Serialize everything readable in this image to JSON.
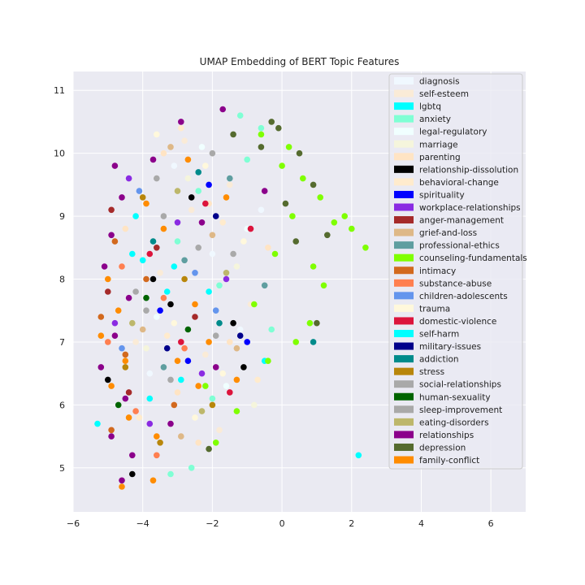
{
  "chart_data": {
    "type": "scatter",
    "title": "UMAP Embedding of BERT Topic Features",
    "xlabel": "",
    "ylabel": "",
    "xlim": [
      -6,
      7
    ],
    "ylim": [
      4.3,
      11.3
    ],
    "xticks": [
      "−6",
      "−4",
      "−2",
      "0",
      "2",
      "4",
      "6"
    ],
    "yticks": [
      "5",
      "6",
      "7",
      "8",
      "9",
      "10",
      "11"
    ],
    "xtick_values": [
      -6,
      -4,
      -2,
      0,
      2,
      4,
      6
    ],
    "ytick_values": [
      5,
      6,
      7,
      8,
      9,
      10,
      11
    ],
    "grid": true,
    "legend_position": "top-right",
    "series": [
      {
        "name": "diagnosis",
        "color": "#f0f8ff",
        "points": [
          [
            -3.1,
            9.8
          ],
          [
            -2.0,
            8.4
          ],
          [
            -1.2,
            7.2
          ],
          [
            -3.8,
            6.5
          ],
          [
            -0.6,
            9.1
          ]
        ]
      },
      {
        "name": "self-esteem",
        "color": "#faebd7",
        "points": [
          [
            -2.8,
            10.2
          ],
          [
            -1.5,
            9.5
          ],
          [
            -3.5,
            8.1
          ],
          [
            -2.2,
            6.8
          ],
          [
            -0.9,
            7.6
          ],
          [
            -4.2,
            7.0
          ],
          [
            -1.8,
            5.6
          ],
          [
            -2.6,
            9.1
          ]
        ]
      },
      {
        "name": "lgbtq",
        "color": "#00ffff",
        "points": [
          [
            -4.0,
            8.3
          ],
          [
            -4.3,
            8.4
          ],
          [
            -2.9,
            6.4
          ],
          [
            -0.5,
            6.7
          ],
          [
            2.2,
            5.2
          ],
          [
            -3.3,
            7.8
          ]
        ]
      },
      {
        "name": "anxiety",
        "color": "#7fffd4",
        "points": [
          [
            -1.2,
            10.6
          ],
          [
            -0.6,
            10.4
          ],
          [
            -2.4,
            9.4
          ],
          [
            -3.0,
            8.6
          ],
          [
            -1.8,
            7.9
          ],
          [
            -0.3,
            7.2
          ],
          [
            -2.6,
            5.0
          ],
          [
            -3.2,
            4.9
          ],
          [
            -1.0,
            9.9
          ],
          [
            -2.0,
            6.1
          ]
        ]
      },
      {
        "name": "legal-regulatory",
        "color": "#f0ffff",
        "points": [
          [
            -2.3,
            10.1
          ],
          [
            -1.0,
            8.8
          ],
          [
            -3.6,
            7.4
          ],
          [
            -1.6,
            6.3
          ]
        ]
      },
      {
        "name": "marriage",
        "color": "#f5f5dc",
        "points": [
          [
            -2.7,
            9.6
          ],
          [
            -1.3,
            8.2
          ],
          [
            -3.9,
            6.9
          ],
          [
            -0.8,
            6.0
          ]
        ]
      },
      {
        "name": "parenting",
        "color": "#ffe4c4",
        "points": [
          [
            -3.4,
            10.0
          ],
          [
            -2.1,
            9.2
          ],
          [
            -4.5,
            8.8
          ],
          [
            -1.5,
            7.0
          ],
          [
            -3.0,
            6.2
          ],
          [
            -2.4,
            5.4
          ],
          [
            -0.4,
            8.5
          ]
        ]
      },
      {
        "name": "relationship-dissolution",
        "color": "#000000",
        "points": [
          [
            -2.6,
            9.3
          ],
          [
            -3.7,
            8.0
          ],
          [
            -1.4,
            7.3
          ],
          [
            -5.0,
            6.4
          ],
          [
            -4.3,
            4.9
          ],
          [
            -1.1,
            6.6
          ],
          [
            -3.2,
            7.6
          ]
        ]
      },
      {
        "name": "behavioral-change",
        "color": "#ffebcd",
        "points": [
          [
            -2.9,
            10.4
          ],
          [
            -1.7,
            8.9
          ],
          [
            -3.3,
            7.1
          ],
          [
            -0.7,
            6.4
          ],
          [
            -4.1,
            5.8
          ]
        ]
      },
      {
        "name": "spirituality",
        "color": "#0000ff",
        "points": [
          [
            -2.1,
            9.5
          ],
          [
            -3.5,
            7.5
          ],
          [
            -1.0,
            7.0
          ],
          [
            -2.7,
            6.7
          ]
        ]
      },
      {
        "name": "workplace-relationships",
        "color": "#8a2be2",
        "points": [
          [
            -4.4,
            9.6
          ],
          [
            -3.0,
            8.9
          ],
          [
            -1.6,
            8.0
          ],
          [
            -4.8,
            7.3
          ],
          [
            -2.3,
            6.5
          ],
          [
            -3.8,
            5.7
          ]
        ]
      },
      {
        "name": "anger-management",
        "color": "#a52a2a",
        "points": [
          [
            -4.9,
            9.1
          ],
          [
            -3.6,
            8.5
          ],
          [
            -5.0,
            7.8
          ],
          [
            -2.5,
            7.4
          ],
          [
            -4.4,
            6.2
          ]
        ]
      },
      {
        "name": "grief-and-loss",
        "color": "#deb887",
        "points": [
          [
            -3.2,
            10.1
          ],
          [
            -2.0,
            8.7
          ],
          [
            -4.0,
            7.2
          ],
          [
            -1.3,
            6.9
          ],
          [
            -2.9,
            5.5
          ]
        ]
      },
      {
        "name": "professional-ethics",
        "color": "#5f9ea0",
        "points": [
          [
            -1.5,
            9.6
          ],
          [
            -2.8,
            8.3
          ],
          [
            -0.5,
            7.9
          ],
          [
            -3.4,
            6.6
          ]
        ]
      },
      {
        "name": "counseling-fundamentals",
        "color": "#7fff00",
        "points": [
          [
            0.2,
            10.1
          ],
          [
            0.6,
            9.6
          ],
          [
            1.1,
            9.3
          ],
          [
            1.5,
            8.9
          ],
          [
            2.0,
            8.8
          ],
          [
            2.4,
            8.5
          ],
          [
            0.9,
            8.2
          ],
          [
            1.2,
            7.9
          ],
          [
            0.3,
            9.0
          ],
          [
            -0.2,
            8.4
          ],
          [
            -0.8,
            7.6
          ],
          [
            -0.4,
            6.7
          ],
          [
            -1.3,
            5.9
          ],
          [
            -1.9,
            5.4
          ],
          [
            0.8,
            7.3
          ],
          [
            0.0,
            9.8
          ],
          [
            1.8,
            9.0
          ],
          [
            -0.6,
            10.3
          ],
          [
            -2.2,
            6.3
          ],
          [
            0.4,
            7.0
          ]
        ]
      },
      {
        "name": "intimacy",
        "color": "#d2691e",
        "points": [
          [
            -4.8,
            8.6
          ],
          [
            -3.9,
            8.0
          ],
          [
            -5.2,
            7.4
          ],
          [
            -4.5,
            6.8
          ],
          [
            -3.1,
            6.0
          ],
          [
            -4.9,
            5.6
          ]
        ]
      },
      {
        "name": "substance-abuse",
        "color": "#ff7f50",
        "points": [
          [
            -4.6,
            8.2
          ],
          [
            -3.4,
            7.7
          ],
          [
            -5.0,
            7.0
          ],
          [
            -2.8,
            6.9
          ],
          [
            -4.2,
            5.9
          ],
          [
            -3.6,
            5.2
          ]
        ]
      },
      {
        "name": "children-adolescents",
        "color": "#6495ed",
        "points": [
          [
            -4.1,
            9.4
          ],
          [
            -2.5,
            8.1
          ],
          [
            -4.6,
            6.9
          ],
          [
            -1.9,
            7.5
          ]
        ]
      },
      {
        "name": "trauma",
        "color": "#fff8dc",
        "points": [
          [
            -3.6,
            10.3
          ],
          [
            -2.2,
            9.8
          ],
          [
            -1.1,
            8.6
          ],
          [
            -3.1,
            7.3
          ],
          [
            -1.7,
            6.5
          ],
          [
            -2.5,
            5.8
          ]
        ]
      },
      {
        "name": "domestic-violence",
        "color": "#dc143c",
        "points": [
          [
            -2.2,
            9.2
          ],
          [
            -3.8,
            8.4
          ],
          [
            -0.9,
            8.8
          ],
          [
            -2.9,
            7.0
          ],
          [
            -1.5,
            6.2
          ]
        ]
      },
      {
        "name": "self-harm",
        "color": "#00ffff",
        "points": [
          [
            -4.2,
            9.0
          ],
          [
            -3.1,
            8.2
          ],
          [
            -3.8,
            6.1
          ],
          [
            -5.3,
            5.7
          ],
          [
            -2.1,
            7.8
          ]
        ]
      },
      {
        "name": "military-issues",
        "color": "#00008b",
        "points": [
          [
            -1.9,
            9.0
          ],
          [
            -3.3,
            6.9
          ],
          [
            -1.2,
            7.1
          ]
        ]
      },
      {
        "name": "addiction",
        "color": "#008b8b",
        "points": [
          [
            -2.4,
            9.7
          ],
          [
            -3.7,
            8.6
          ],
          [
            -1.8,
            7.3
          ],
          [
            0.9,
            7.0
          ]
        ]
      },
      {
        "name": "stress",
        "color": "#b8860b",
        "points": [
          [
            -4.0,
            9.3
          ],
          [
            -2.8,
            8.0
          ],
          [
            -4.5,
            6.6
          ],
          [
            -2.0,
            6.0
          ],
          [
            -3.5,
            5.4
          ]
        ]
      },
      {
        "name": "social-relationships",
        "color": "#a9a9a9",
        "points": [
          [
            -3.6,
            9.6
          ],
          [
            -2.4,
            8.5
          ],
          [
            -4.2,
            7.8
          ],
          [
            -1.9,
            7.1
          ],
          [
            -3.2,
            6.4
          ]
        ]
      },
      {
        "name": "human-sexuality",
        "color": "#006400",
        "points": [
          [
            -3.9,
            7.7
          ],
          [
            -4.7,
            6.0
          ],
          [
            -2.7,
            7.2
          ]
        ]
      },
      {
        "name": "sleep-improvement",
        "color": "#a9a9a9",
        "points": [
          [
            -2.0,
            10.0
          ],
          [
            -3.4,
            9.0
          ],
          [
            -1.4,
            8.4
          ],
          [
            -3.9,
            7.5
          ]
        ]
      },
      {
        "name": "eating-disorders",
        "color": "#bdb76b",
        "points": [
          [
            -3.0,
            9.4
          ],
          [
            -1.6,
            8.1
          ],
          [
            -4.3,
            7.3
          ],
          [
            -2.3,
            5.9
          ]
        ]
      },
      {
        "name": "relationships",
        "color": "#8b008b",
        "points": [
          [
            -4.8,
            9.8
          ],
          [
            -4.6,
            9.3
          ],
          [
            -4.9,
            8.7
          ],
          [
            -5.1,
            8.2
          ],
          [
            -4.4,
            7.7
          ],
          [
            -4.8,
            7.1
          ],
          [
            -5.2,
            6.6
          ],
          [
            -4.5,
            6.1
          ],
          [
            -4.9,
            5.5
          ],
          [
            -4.3,
            5.2
          ],
          [
            -4.6,
            4.8
          ],
          [
            -2.9,
            10.5
          ],
          [
            -1.7,
            10.7
          ],
          [
            -2.3,
            8.9
          ],
          [
            -3.7,
            9.9
          ],
          [
            -1.9,
            6.6
          ],
          [
            -3.2,
            5.7
          ],
          [
            -0.5,
            9.4
          ]
        ]
      },
      {
        "name": "depression",
        "color": "#556b2f",
        "points": [
          [
            -0.3,
            10.5
          ],
          [
            -0.1,
            10.4
          ],
          [
            0.5,
            10.0
          ],
          [
            0.9,
            9.5
          ],
          [
            0.1,
            9.2
          ],
          [
            1.3,
            8.7
          ],
          [
            -0.6,
            10.1
          ],
          [
            -1.4,
            10.3
          ],
          [
            0.4,
            8.6
          ],
          [
            1.0,
            7.3
          ],
          [
            -2.1,
            5.3
          ]
        ]
      },
      {
        "name": "family-conflict",
        "color": "#ff8c00",
        "points": [
          [
            -5.0,
            8.0
          ],
          [
            -4.7,
            7.5
          ],
          [
            -5.2,
            7.1
          ],
          [
            -4.5,
            6.7
          ],
          [
            -4.9,
            6.3
          ],
          [
            -4.4,
            5.8
          ],
          [
            -3.6,
            5.5
          ],
          [
            -3.0,
            6.7
          ],
          [
            -2.5,
            7.6
          ],
          [
            -3.4,
            8.8
          ],
          [
            -2.7,
            9.9
          ],
          [
            -1.6,
            9.3
          ],
          [
            -2.1,
            7.0
          ],
          [
            -3.7,
            4.8
          ],
          [
            -4.6,
            4.7
          ],
          [
            -1.3,
            6.4
          ],
          [
            -3.9,
            9.2
          ],
          [
            -2.4,
            6.3
          ]
        ]
      }
    ]
  }
}
